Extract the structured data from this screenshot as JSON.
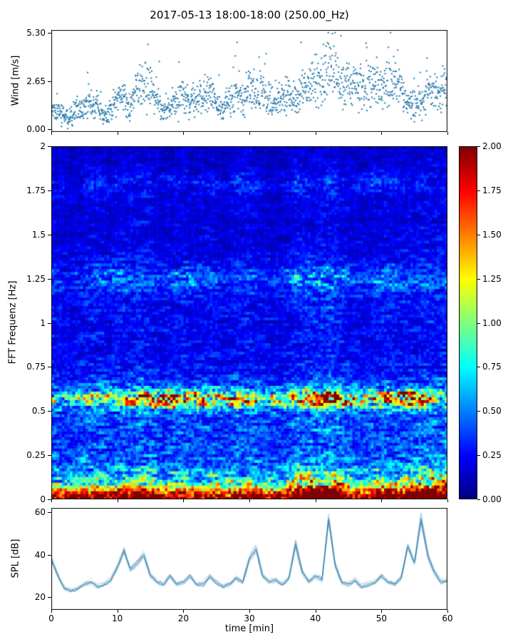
{
  "title": "2017-05-13 18:00-18:00 (250.00_Hz)",
  "chart_data": [
    {
      "type": "scatter",
      "name": "wind-speed",
      "ylabel": "Wind [m/s]",
      "ylim": [
        -0.15,
        5.45
      ],
      "yticks": [
        0.0,
        2.65,
        5.3
      ],
      "ytick_labels": [
        "0.00",
        "2.65",
        "5.30"
      ],
      "xlim": [
        0,
        60
      ],
      "marker_color": "#2277aa",
      "points_per_minute": 25,
      "spread": 0.45,
      "mean_by_minute": [
        0.9,
        1.1,
        0.7,
        0.8,
        1.0,
        1.2,
        1.5,
        1.3,
        0.6,
        1.0,
        1.9,
        1.6,
        1.2,
        2.6,
        2.2,
        2.6,
        1.8,
        0.9,
        1.3,
        1.6,
        1.9,
        1.4,
        1.6,
        1.9,
        2.1,
        1.5,
        1.0,
        1.6,
        2.0,
        1.5,
        2.3,
        2.0,
        2.2,
        1.7,
        1.4,
        1.8,
        2.0,
        1.6,
        2.2,
        2.4,
        2.6,
        2.8,
        3.8,
        3.2,
        2.4,
        2.6,
        2.5,
        2.3,
        2.5,
        2.4,
        2.3,
        2.5,
        2.6,
        2.2,
        1.7,
        1.4,
        1.6,
        2.1,
        1.9,
        2.2,
        2.0
      ]
    },
    {
      "type": "heatmap",
      "name": "fft-spectrogram",
      "ylabel": "FFT Frequenz [Hz]",
      "ylim": [
        0,
        2
      ],
      "yticks": [
        0,
        0.25,
        0.5,
        0.75,
        1,
        1.25,
        1.5,
        1.75,
        2
      ],
      "ytick_labels": [
        "0",
        "0.25",
        "0.5",
        "0.75",
        "1",
        "1.25",
        "1.5",
        "1.75",
        "2"
      ],
      "xlim": [
        0,
        60
      ],
      "colormap": "jet",
      "colorbar": {
        "vmin": 0,
        "vmax": 2,
        "ticks": [
          0,
          0.25,
          0.5,
          0.75,
          1,
          1.25,
          1.5,
          1.75,
          2
        ],
        "tick_labels": [
          "0.00",
          "0.25",
          "0.50",
          "0.75",
          "1.00",
          "1.25",
          "1.50",
          "1.75",
          "2.00"
        ]
      },
      "freq_profile": [
        [
          0.0,
          1.95
        ],
        [
          0.03,
          1.7
        ],
        [
          0.05,
          1.3
        ],
        [
          0.08,
          0.8
        ],
        [
          0.12,
          0.6
        ],
        [
          0.18,
          0.5
        ],
        [
          0.25,
          0.45
        ],
        [
          0.35,
          0.42
        ],
        [
          0.45,
          0.42
        ],
        [
          0.52,
          0.5
        ],
        [
          0.57,
          0.6
        ],
        [
          0.63,
          0.45
        ],
        [
          0.72,
          0.32
        ],
        [
          0.85,
          0.26
        ],
        [
          1.0,
          0.27
        ],
        [
          1.1,
          0.28
        ],
        [
          1.2,
          0.3
        ],
        [
          1.3,
          0.28
        ],
        [
          1.45,
          0.22
        ],
        [
          1.6,
          0.2
        ],
        [
          1.75,
          0.22
        ],
        [
          1.9,
          0.18
        ],
        [
          2.0,
          0.16
        ]
      ],
      "time_mod_by_minute": [
        1.05,
        0.95,
        0.9,
        0.9,
        0.95,
        1.0,
        1.05,
        1.1,
        1.0,
        0.95,
        1.1,
        1.15,
        1.05,
        1.1,
        1.15,
        1.1,
        1.0,
        0.9,
        0.95,
        1.0,
        1.05,
        1.0,
        0.95,
        1.0,
        1.05,
        0.95,
        0.85,
        0.9,
        1.05,
        1.0,
        1.1,
        1.0,
        0.95,
        0.9,
        0.85,
        0.9,
        1.0,
        1.15,
        1.2,
        1.15,
        1.2,
        1.25,
        1.3,
        1.2,
        1.1,
        1.0,
        0.95,
        0.9,
        0.95,
        1.0,
        1.05,
        1.1,
        1.05,
        1.0,
        1.1,
        1.05,
        1.15,
        1.2,
        1.1,
        1.15,
        1.15
      ],
      "bands": [
        {
          "name": "swell-band",
          "center": 0.57,
          "width": 0.05,
          "intensity_by_minute": [
            0.4,
            0.4,
            0.35,
            0.35,
            0.4,
            0.5,
            0.6,
            0.7,
            0.6,
            0.55,
            0.7,
            0.8,
            0.9,
            1.0,
            1.2,
            1.3,
            1.35,
            1.4,
            1.5,
            1.45,
            1.4,
            1.3,
            1.2,
            1.1,
            1.0,
            0.95,
            0.9,
            1.0,
            1.15,
            1.2,
            1.0,
            0.85,
            0.75,
            0.7,
            0.65,
            0.6,
            0.75,
            0.9,
            1.1,
            1.25,
            1.35,
            1.5,
            1.55,
            1.45,
            1.3,
            1.15,
            1.0,
            0.9,
            0.85,
            0.9,
            1.0,
            1.15,
            1.3,
            1.4,
            1.45,
            1.3,
            1.05,
            0.85,
            0.7,
            0.6,
            0.5
          ]
        },
        {
          "name": "mid-band",
          "center": 1.25,
          "width": 0.07,
          "intensity_by_minute": [
            0.1,
            0.1,
            0.05,
            0.05,
            0.1,
            0.1,
            0.15,
            0.2,
            0.25,
            0.3,
            0.3,
            0.25,
            0.2,
            0.2,
            0.15,
            0.1,
            0.1,
            0.15,
            0.2,
            0.25,
            0.3,
            0.35,
            0.3,
            0.3,
            0.25,
            0.2,
            0.15,
            0.1,
            0.1,
            0.15,
            0.2,
            0.15,
            0.1,
            0.1,
            0.1,
            0.15,
            0.2,
            0.3,
            0.35,
            0.35,
            0.3,
            0.35,
            0.3,
            0.3,
            0.25,
            0.2,
            0.2,
            0.15,
            0.2,
            0.25,
            0.3,
            0.3,
            0.35,
            0.3,
            0.25,
            0.2,
            0.15,
            0.1,
            0.1,
            0.1,
            0.1
          ]
        },
        {
          "name": "high-band",
          "center": 1.8,
          "width": 0.06,
          "intensity_by_minute": [
            0.05,
            0.1,
            0.1,
            0.05,
            0.1,
            0.15,
            0.2,
            0.2,
            0.15,
            0.1,
            0.1,
            0.05,
            0.05,
            0.1,
            0.1,
            0.05,
            0.05,
            0.1,
            0.1,
            0.15,
            0.1,
            0.05,
            0.1,
            0.1,
            0.15,
            0.1,
            0.05,
            0.1,
            0.2,
            0.25,
            0.2,
            0.15,
            0.1,
            0.05,
            0.05,
            0.1,
            0.1,
            0.15,
            0.1,
            0.1,
            0.05,
            0.1,
            0.15,
            0.1,
            0.1,
            0.05,
            0.1,
            0.15,
            0.2,
            0.2,
            0.15,
            0.1,
            0.1,
            0.05,
            0.1,
            0.1,
            0.15,
            0.1,
            0.05,
            0.05,
            0.05
          ]
        },
        {
          "name": "low-band",
          "center": 0.05,
          "width": 0.12,
          "intensity_by_minute": [
            0.3,
            0.35,
            0.3,
            0.25,
            0.3,
            0.3,
            0.35,
            0.4,
            0.35,
            0.3,
            0.4,
            0.45,
            0.4,
            0.45,
            0.4,
            0.35,
            0.3,
            0.35,
            0.4,
            0.35,
            0.3,
            0.35,
            0.3,
            0.3,
            0.35,
            0.3,
            0.25,
            0.3,
            0.35,
            0.3,
            0.4,
            0.45,
            0.4,
            0.35,
            0.3,
            0.35,
            0.5,
            0.7,
            0.8,
            0.85,
            0.9,
            0.85,
            0.8,
            0.7,
            0.5,
            0.4,
            0.35,
            0.3,
            0.35,
            0.4,
            0.45,
            0.4,
            0.35,
            0.4,
            0.5,
            0.7,
            0.9,
            1.0,
            1.05,
            1.1,
            1.1
          ]
        }
      ]
    },
    {
      "type": "line",
      "name": "spl",
      "ylabel": "SPL [dB]",
      "xlabel": "time [min]",
      "ylim": [
        14,
        62
      ],
      "yticks": [
        20,
        40,
        60
      ],
      "ytick_labels": [
        "20",
        "40",
        "60"
      ],
      "xlim": [
        0,
        60
      ],
      "xticks": [
        0,
        10,
        20,
        30,
        40,
        50,
        60
      ],
      "xtick_labels": [
        "0",
        "10",
        "20",
        "30",
        "40",
        "50",
        "60"
      ],
      "line_color": "#2277aa",
      "mean_by_minute": [
        38,
        30,
        24,
        23,
        24,
        26,
        27,
        25,
        26,
        28,
        34,
        42,
        33,
        36,
        40,
        30,
        27,
        26,
        30,
        26,
        27,
        30,
        26,
        26,
        30,
        27,
        25,
        26,
        29,
        27,
        38,
        43,
        30,
        27,
        28,
        26,
        29,
        45,
        32,
        27,
        30,
        28,
        57,
        35,
        27,
        26,
        28,
        25,
        26,
        27,
        30,
        27,
        26,
        29,
        44,
        36,
        57,
        40,
        32,
        27,
        28
      ]
    }
  ]
}
